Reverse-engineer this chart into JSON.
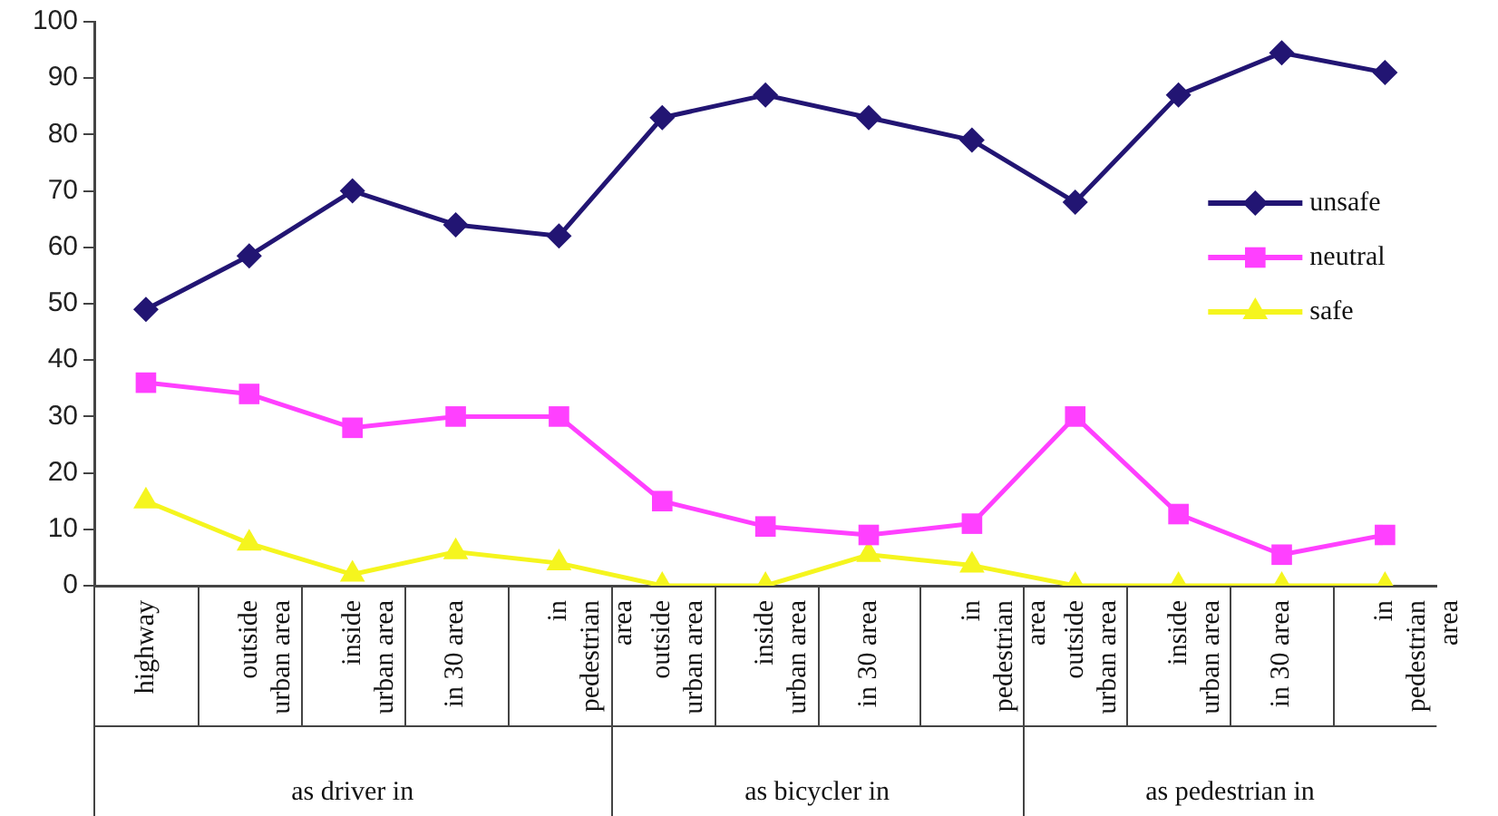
{
  "chart_data": {
    "type": "line",
    "categories": [
      "highway",
      "outside urban area",
      "inside urban area",
      "in 30 area",
      "in pedestrian area",
      "outside urban area",
      "inside urban area",
      "in 30 area",
      "in pedestrian area",
      "outside urban area",
      "inside urban area",
      "in 30 area",
      "in pedestrian area"
    ],
    "series": [
      {
        "name": "unsafe",
        "color": "#221573",
        "marker": "diamond",
        "values": [
          49,
          58.5,
          70,
          64,
          62,
          83,
          87,
          83,
          79,
          68,
          87,
          94.5,
          91
        ]
      },
      {
        "name": "neutral",
        "color": "#ff40ff",
        "marker": "square",
        "values": [
          36,
          34,
          28,
          30,
          30,
          15,
          10.5,
          9,
          11,
          30,
          12.7,
          5.5,
          9
        ]
      },
      {
        "name": "safe",
        "color": "#f5f51e",
        "marker": "triangle",
        "values": [
          15,
          7.5,
          2,
          6,
          4,
          0,
          0,
          5.5,
          3.6,
          0,
          0,
          0,
          0
        ]
      }
    ],
    "ylim": [
      0,
      100
    ],
    "yticks": [
      0,
      10,
      20,
      30,
      40,
      50,
      60,
      70,
      80,
      90,
      100
    ],
    "legend": "right",
    "annotations": [
      "as driver in",
      "as bicycler in",
      "as pedestrian in"
    ]
  }
}
